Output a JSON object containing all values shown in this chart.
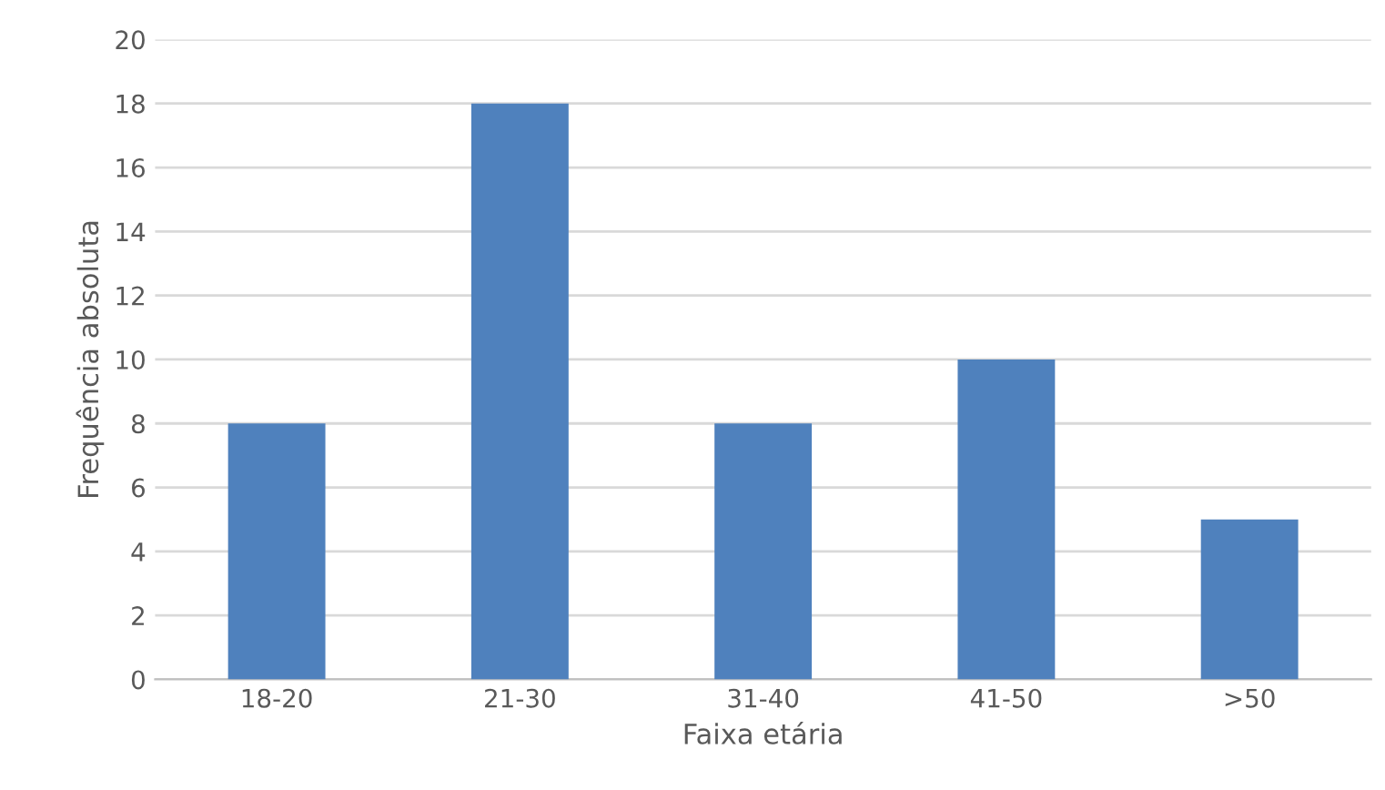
{
  "chart_data": {
    "type": "bar",
    "xlabel": "Faixa etária",
    "ylabel": "Frequência absoluta",
    "categories": [
      "18-20",
      "21-30",
      "31-40",
      "41-50",
      ">50"
    ],
    "values": [
      8,
      18,
      8,
      10,
      5
    ],
    "color": "#4f81bd",
    "ylim": [
      0,
      20
    ],
    "yticks": [
      0,
      2,
      4,
      6,
      8,
      10,
      12,
      14,
      16,
      18,
      20
    ],
    "grid": "y"
  }
}
